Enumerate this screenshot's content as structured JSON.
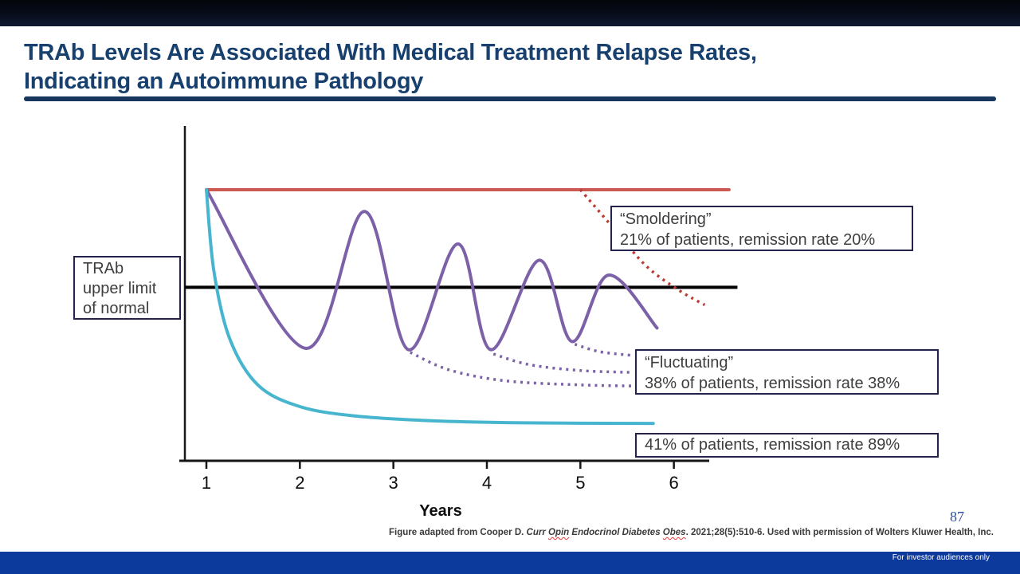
{
  "header": {
    "title_line1": "TRAb Levels Are Associated With Medical Treatment Relapse Rates,",
    "title_line2": "Indicating an Autoimmune Pathology"
  },
  "labels": {
    "trab_line1": "TRAb",
    "trab_line2": "upper limit",
    "trab_line3": "of normal",
    "smoldering_line1": "“Smoldering”",
    "smoldering_line2": "21% of patients, remission rate 20%",
    "fluctuating_line1": "“Fluctuating”",
    "fluctuating_line2": "38% of patients, remission rate 38%",
    "gradual_line": "41% of patients, remission rate 89%"
  },
  "chart_data": {
    "type": "line",
    "title": "",
    "xlabel": "Years",
    "ylabel": "",
    "x_ticks": [
      1,
      2,
      3,
      4,
      5,
      6
    ],
    "x_range_years": [
      1,
      6.6
    ],
    "y_axis_note": "no numeric scale shown; values are relative TRAb level, 100 = level at treatment start",
    "grid": false,
    "legend": "none (annotated boxes instead)",
    "reference_line": {
      "label": "TRAb upper limit of normal",
      "value": 64,
      "x_range": [
        0.77,
        6.68
      ],
      "color": "#000000"
    },
    "series": [
      {
        "name": "smoldering-persistent",
        "annotation": "“Smoldering” 21% of patients, remission rate 20%",
        "color": "#cd5a52",
        "style": "solid",
        "width": 4,
        "points": [
          [
            1.0,
            100
          ],
          [
            6.59,
            100
          ]
        ]
      },
      {
        "name": "smoldering-late-decline",
        "annotation": "dotted decline of smoldering curve after year 5",
        "color": "#bb3a33",
        "style": "dotted",
        "width": 3.5,
        "points": [
          [
            5.0,
            100
          ],
          [
            5.35,
            86
          ],
          [
            5.7,
            72
          ],
          [
            6.05,
            63
          ],
          [
            6.33,
            57.5
          ]
        ]
      },
      {
        "name": "fluctuating",
        "annotation": "“Fluctuating” 38% of patients, remission rate 38%",
        "color": "#7c61a9",
        "style": "solid",
        "width": 4,
        "points": [
          [
            1.0,
            100
          ],
          [
            2.06,
            41.5
          ],
          [
            2.69,
            92
          ],
          [
            3.16,
            41
          ],
          [
            3.69,
            80
          ],
          [
            4.04,
            41
          ],
          [
            4.56,
            74
          ],
          [
            4.91,
            44
          ],
          [
            5.3,
            68.5
          ],
          [
            5.82,
            49
          ]
        ]
      },
      {
        "name": "fluctuating-remission-branch-1",
        "color": "#7c61a9",
        "style": "dotted",
        "width": 3.5,
        "points": [
          [
            3.18,
            40
          ],
          [
            3.6,
            33.5
          ],
          [
            4.2,
            29.5
          ],
          [
            5.0,
            28
          ],
          [
            5.57,
            27.6
          ]
        ]
      },
      {
        "name": "fluctuating-remission-branch-2",
        "color": "#7c61a9",
        "style": "dotted",
        "width": 3.5,
        "points": [
          [
            4.07,
            39.4
          ],
          [
            4.45,
            35.5
          ],
          [
            5.0,
            33.3
          ],
          [
            5.57,
            32.6
          ]
        ]
      },
      {
        "name": "fluctuating-remission-branch-3",
        "color": "#7c61a9",
        "style": "dotted",
        "width": 3.5,
        "points": [
          [
            4.94,
            43
          ],
          [
            5.2,
            40.3
          ],
          [
            5.57,
            38.8
          ]
        ]
      },
      {
        "name": "rapid-remission",
        "annotation": "41% of patients, remission rate 89%",
        "color": "#48b5cf",
        "style": "solid",
        "width": 4,
        "points": [
          [
            1.0,
            100
          ],
          [
            1.08,
            70
          ],
          [
            1.25,
            45
          ],
          [
            1.55,
            28
          ],
          [
            2.0,
            20
          ],
          [
            2.6,
            16.5
          ],
          [
            3.4,
            14.8
          ],
          [
            4.4,
            14.0
          ],
          [
            5.78,
            13.8
          ]
        ]
      }
    ]
  },
  "footer": {
    "page_number": "87",
    "citation_prefix": "Figure adapted from Cooper D. ",
    "citation_italic_1": "Curr ",
    "citation_italic_misspell_1": "Opin",
    "citation_italic_2": " Endocrinol Diabetes ",
    "citation_italic_misspell_2": "Obes",
    "citation_suffix": ". 2021;28(5):510-6. Used with permission of Wolters Kluwer Health, Inc.",
    "audience_note": "For investor audiences only"
  }
}
